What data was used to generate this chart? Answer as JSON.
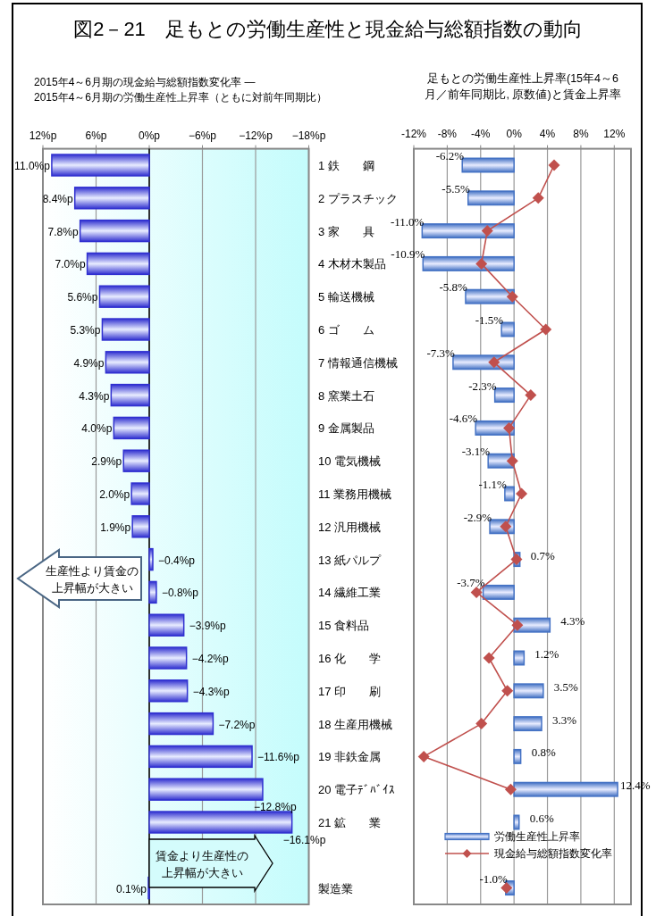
{
  "chart_data": [
    {
      "type": "bar",
      "orientation": "horizontal",
      "title": "図2－21　足もとの労働生産性と現金給与総額指数の動向",
      "subtitle": "2015年4～6月期の現金給与総額指数変化率 ―\n2015年4～6月期の労働生産性上昇率（ともに対前年同期比）",
      "categories": [
        "1 鉄　　鋼",
        "2 プラスチック",
        "3 家　　具",
        "4 木材木製品",
        "5 輸送機械",
        "6 ゴ　　ム",
        "7 情報通信機械",
        "8 窯業土石",
        "9 金属製品",
        "10 電気機械",
        "11 業務用機械",
        "12 汎用機械",
        "13 紙パルプ",
        "14 繊維工業",
        "15 食料品",
        "16 化　　学",
        "17 印　　刷",
        "18 生産用機械",
        "19 非鉄金属",
        "20 電子ﾃﾞﾊﾞｲｽ",
        "21 鉱　　業",
        null,
        "製造業"
      ],
      "values": [
        11.0,
        8.4,
        7.8,
        7.0,
        5.6,
        5.3,
        4.9,
        4.3,
        4.0,
        2.9,
        2.0,
        1.9,
        -0.4,
        -0.8,
        -3.9,
        -4.2,
        -4.3,
        -7.2,
        -11.6,
        -12.8,
        -16.1,
        null,
        0.1
      ],
      "value_labels": [
        "11.0%p",
        "8.4%p",
        "7.8%p",
        "7.0%p",
        "5.6%p",
        "5.3%p",
        "4.9%p",
        "4.3%p",
        "4.0%p",
        "2.9%p",
        "2.0%p",
        "1.9%p",
        "−0.4%p",
        "−0.8%p",
        "−3.9%p",
        "−4.2%p",
        "−4.3%p",
        "−7.2%p",
        "−11.6%p",
        "−12.8%p",
        "−16.1%p",
        null,
        "0.1%p"
      ],
      "color": "#3030d0",
      "xlim": [
        12,
        -18
      ],
      "xticks": [
        {
          "value": 12,
          "label": "12%p"
        },
        {
          "value": 6,
          "label": "6%p"
        },
        {
          "value": 0,
          "label": "0%p"
        },
        {
          "value": -6,
          "label": "−6%p"
        },
        {
          "value": -12,
          "label": "−12%p"
        },
        {
          "value": -18,
          "label": "−18%p"
        }
      ],
      "grid": "x",
      "annotations": [
        "生産性より賃金の上昇幅が大きい",
        "賃金より生産性の上昇幅が大きい"
      ]
    },
    {
      "type": "bar",
      "orientation": "horizontal",
      "title": "足もとの労働生産性上昇率(15年4～6\n月／前年同期比, 原数値)と賃金上昇率",
      "categories": [
        null,
        null,
        null,
        null,
        null,
        null,
        null,
        null,
        null,
        null,
        null,
        null,
        null,
        null,
        null,
        null,
        null,
        null,
        null,
        null,
        null,
        null,
        null
      ],
      "series": [
        {
          "name": "労働生産性上昇率",
          "color": "#4472c4",
          "values": [
            -6.2,
            -5.5,
            -11.0,
            -10.9,
            -5.8,
            -1.5,
            -7.3,
            -2.3,
            -4.6,
            -3.1,
            -1.1,
            -2.9,
            0.7,
            -3.7,
            4.3,
            1.2,
            3.5,
            3.3,
            0.8,
            12.4,
            0.6,
            null,
            -1.0
          ],
          "value_labels": [
            "-6.2%",
            "-5.5%",
            "-11.0%",
            "-10.9%",
            "-5.8%",
            "-1.5%",
            "-7.3%",
            "-2.3%",
            "-4.6%",
            "-3.1%",
            "-1.1%",
            "-2.9%",
            "0.7%",
            "-3.7%",
            "4.3%",
            "1.2%",
            "3.5%",
            "3.3%",
            "0.8%",
            "12.4%",
            "0.6%",
            null,
            "-1.0%"
          ]
        },
        {
          "name": "現金給与総額指数変化率",
          "type": "line",
          "color": "#c0504d",
          "marker": "diamond",
          "values": [
            4.8,
            2.9,
            -3.2,
            -3.9,
            -0.2,
            3.8,
            -2.4,
            2.0,
            -0.6,
            -0.2,
            0.9,
            -1.0,
            0.3,
            -4.5,
            0.4,
            -3.0,
            -0.8,
            -3.9,
            -10.8,
            -0.4,
            null,
            null,
            -0.9
          ]
        }
      ],
      "xlim": [
        -12,
        14
      ],
      "xticks": [
        {
          "value": -12,
          "label": "-12%"
        },
        {
          "value": -8,
          "label": "-8%"
        },
        {
          "value": -4,
          "label": "-4%"
        },
        {
          "value": 0,
          "label": "0%"
        },
        {
          "value": 4,
          "label": "4%"
        },
        {
          "value": 8,
          "label": "8%"
        },
        {
          "value": 12,
          "label": "12%"
        }
      ],
      "grid": "x",
      "tick_labels": "x",
      "legend": "bottom right"
    }
  ]
}
